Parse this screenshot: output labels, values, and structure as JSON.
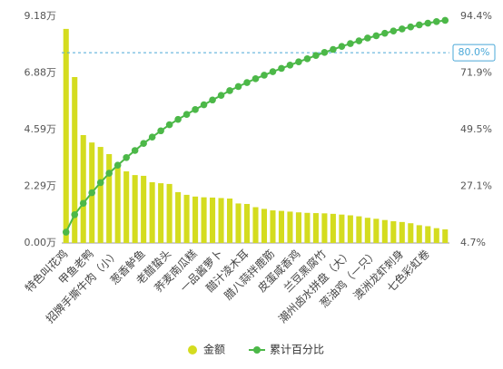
{
  "chart_data": {
    "type": "pareto",
    "categories": [
      "特色叫花鸡",
      null,
      null,
      "甲鱼老鸭",
      null,
      null,
      "招牌手撕牛肉（小）",
      null,
      null,
      "葱香鲈鱼",
      null,
      null,
      "老醋蛰头",
      null,
      null,
      "荞麦南瓜糕",
      null,
      null,
      "一品酱萝卜",
      null,
      null,
      "醋汁凌木耳",
      null,
      null,
      "腊八蒜拌鹿筋",
      null,
      null,
      "皮蛋咸香鸡",
      null,
      null,
      "兰豆黑腐竹",
      null,
      null,
      "潮州卤水拼盘（大）",
      null,
      null,
      "葱油鸡（一只）",
      null,
      null,
      "澳洲龙虾刺身",
      null,
      null,
      "七色彩虹卷",
      null,
      null
    ],
    "series": [
      {
        "name": "金额",
        "color": "#d4dc1f",
        "values": [
          8.67,
          6.72,
          4.37,
          4.07,
          3.89,
          3.6,
          3.16,
          2.9,
          2.75,
          2.72,
          2.46,
          2.42,
          2.39,
          2.06,
          1.95,
          1.88,
          1.85,
          1.84,
          1.82,
          1.8,
          1.6,
          1.58,
          1.45,
          1.38,
          1.32,
          1.3,
          1.27,
          1.24,
          1.22,
          1.21,
          1.2,
          1.18,
          1.15,
          1.12,
          1.08,
          1.02,
          0.98,
          0.93,
          0.88,
          0.85,
          0.8,
          0.72,
          0.68,
          0.6,
          0.55
        ]
      },
      {
        "name": "累计百分比",
        "color": "#4cb848",
        "axis": "y2",
        "values": [
          9.0,
          15.9,
          20.4,
          24.6,
          28.6,
          32.3,
          35.5,
          38.5,
          41.3,
          44.1,
          46.6,
          49.1,
          51.5,
          53.6,
          55.6,
          57.5,
          59.4,
          61.3,
          63.1,
          65.0,
          66.6,
          68.2,
          69.7,
          71.1,
          72.5,
          73.8,
          75.1,
          76.4,
          77.6,
          78.9,
          80.1,
          81.3,
          82.5,
          83.6,
          84.7,
          85.8,
          86.7,
          87.7,
          88.6,
          89.4,
          90.2,
          91.0,
          91.7,
          92.3,
          92.8
        ]
      }
    ],
    "ylim": [
      0,
      9.18
    ],
    "yticks": [
      {
        "value": 0,
        "label": "0.00万"
      },
      {
        "value": 2.29,
        "label": "2.29万"
      },
      {
        "value": 4.59,
        "label": "4.59万"
      },
      {
        "value": 6.88,
        "label": "6.88万"
      },
      {
        "value": 9.18,
        "label": "9.18万"
      }
    ],
    "y2lim": [
      4.7,
      94.4
    ],
    "y2ticks": [
      {
        "value": 4.7,
        "label": "4.7%"
      },
      {
        "value": 27.1,
        "label": "27.1%"
      },
      {
        "value": 49.5,
        "label": "49.5%"
      },
      {
        "value": 71.9,
        "label": "71.9%"
      },
      {
        "value": 94.4,
        "label": "94.4%"
      }
    ],
    "reference_line": {
      "value": 80,
      "label": "80.0%"
    },
    "legend": "bottom"
  }
}
